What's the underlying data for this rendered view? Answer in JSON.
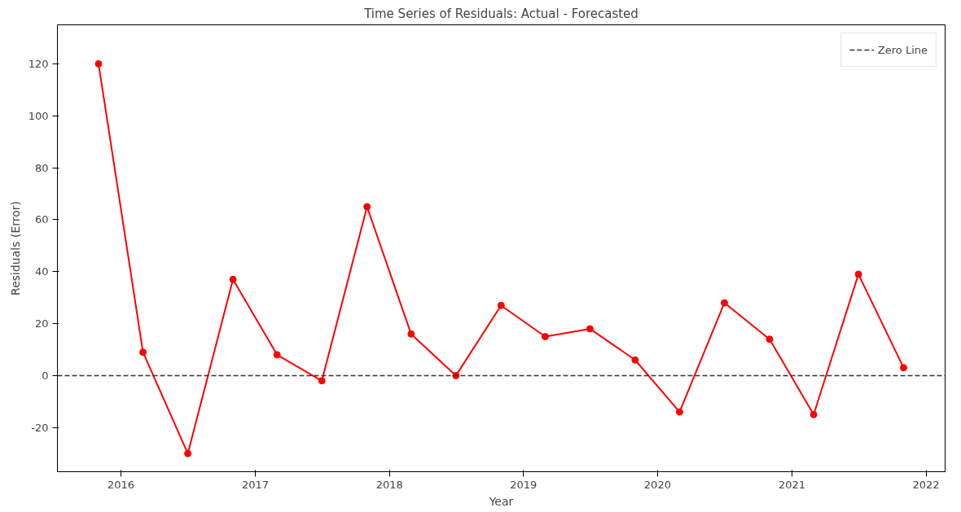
{
  "chart_data": {
    "type": "line",
    "title": "Time Series of Residuals: Actual - Forecasted",
    "xlabel": "Year",
    "ylabel": "Residuals (Error)",
    "x": [
      "2015-11-01",
      "2016-03-01",
      "2016-07-01",
      "2016-11-01",
      "2017-03-01",
      "2017-07-01",
      "2017-11-01",
      "2018-03-01",
      "2018-07-01",
      "2018-11-01",
      "2019-03-01",
      "2019-07-01",
      "2019-11-01",
      "2020-03-01",
      "2020-07-01",
      "2020-11-01",
      "2021-03-01",
      "2021-07-01",
      "2021-11-01"
    ],
    "series": [
      {
        "color": "#ff0000",
        "values": [
          120,
          9,
          -30,
          37,
          8,
          -2,
          65,
          16,
          0,
          27,
          15,
          18,
          6,
          -14,
          28,
          14,
          -15,
          39,
          3
        ]
      }
    ],
    "xlim": [
      "2015-07-12",
      "2022-02-22"
    ],
    "xticks": [
      "2016",
      "2017",
      "2018",
      "2019",
      "2020",
      "2021",
      "2022"
    ],
    "ylim": [
      -37,
      135
    ],
    "yticks": [
      -20,
      0,
      20,
      40,
      60,
      80,
      100,
      120
    ],
    "ref_lines": [
      {
        "axis": "y",
        "value": 0,
        "label": "Zero Line",
        "color": "#333333",
        "line_style": "dashed"
      }
    ],
    "marker": "circle",
    "line_style": "solid",
    "grid": false,
    "legend": "top right"
  }
}
